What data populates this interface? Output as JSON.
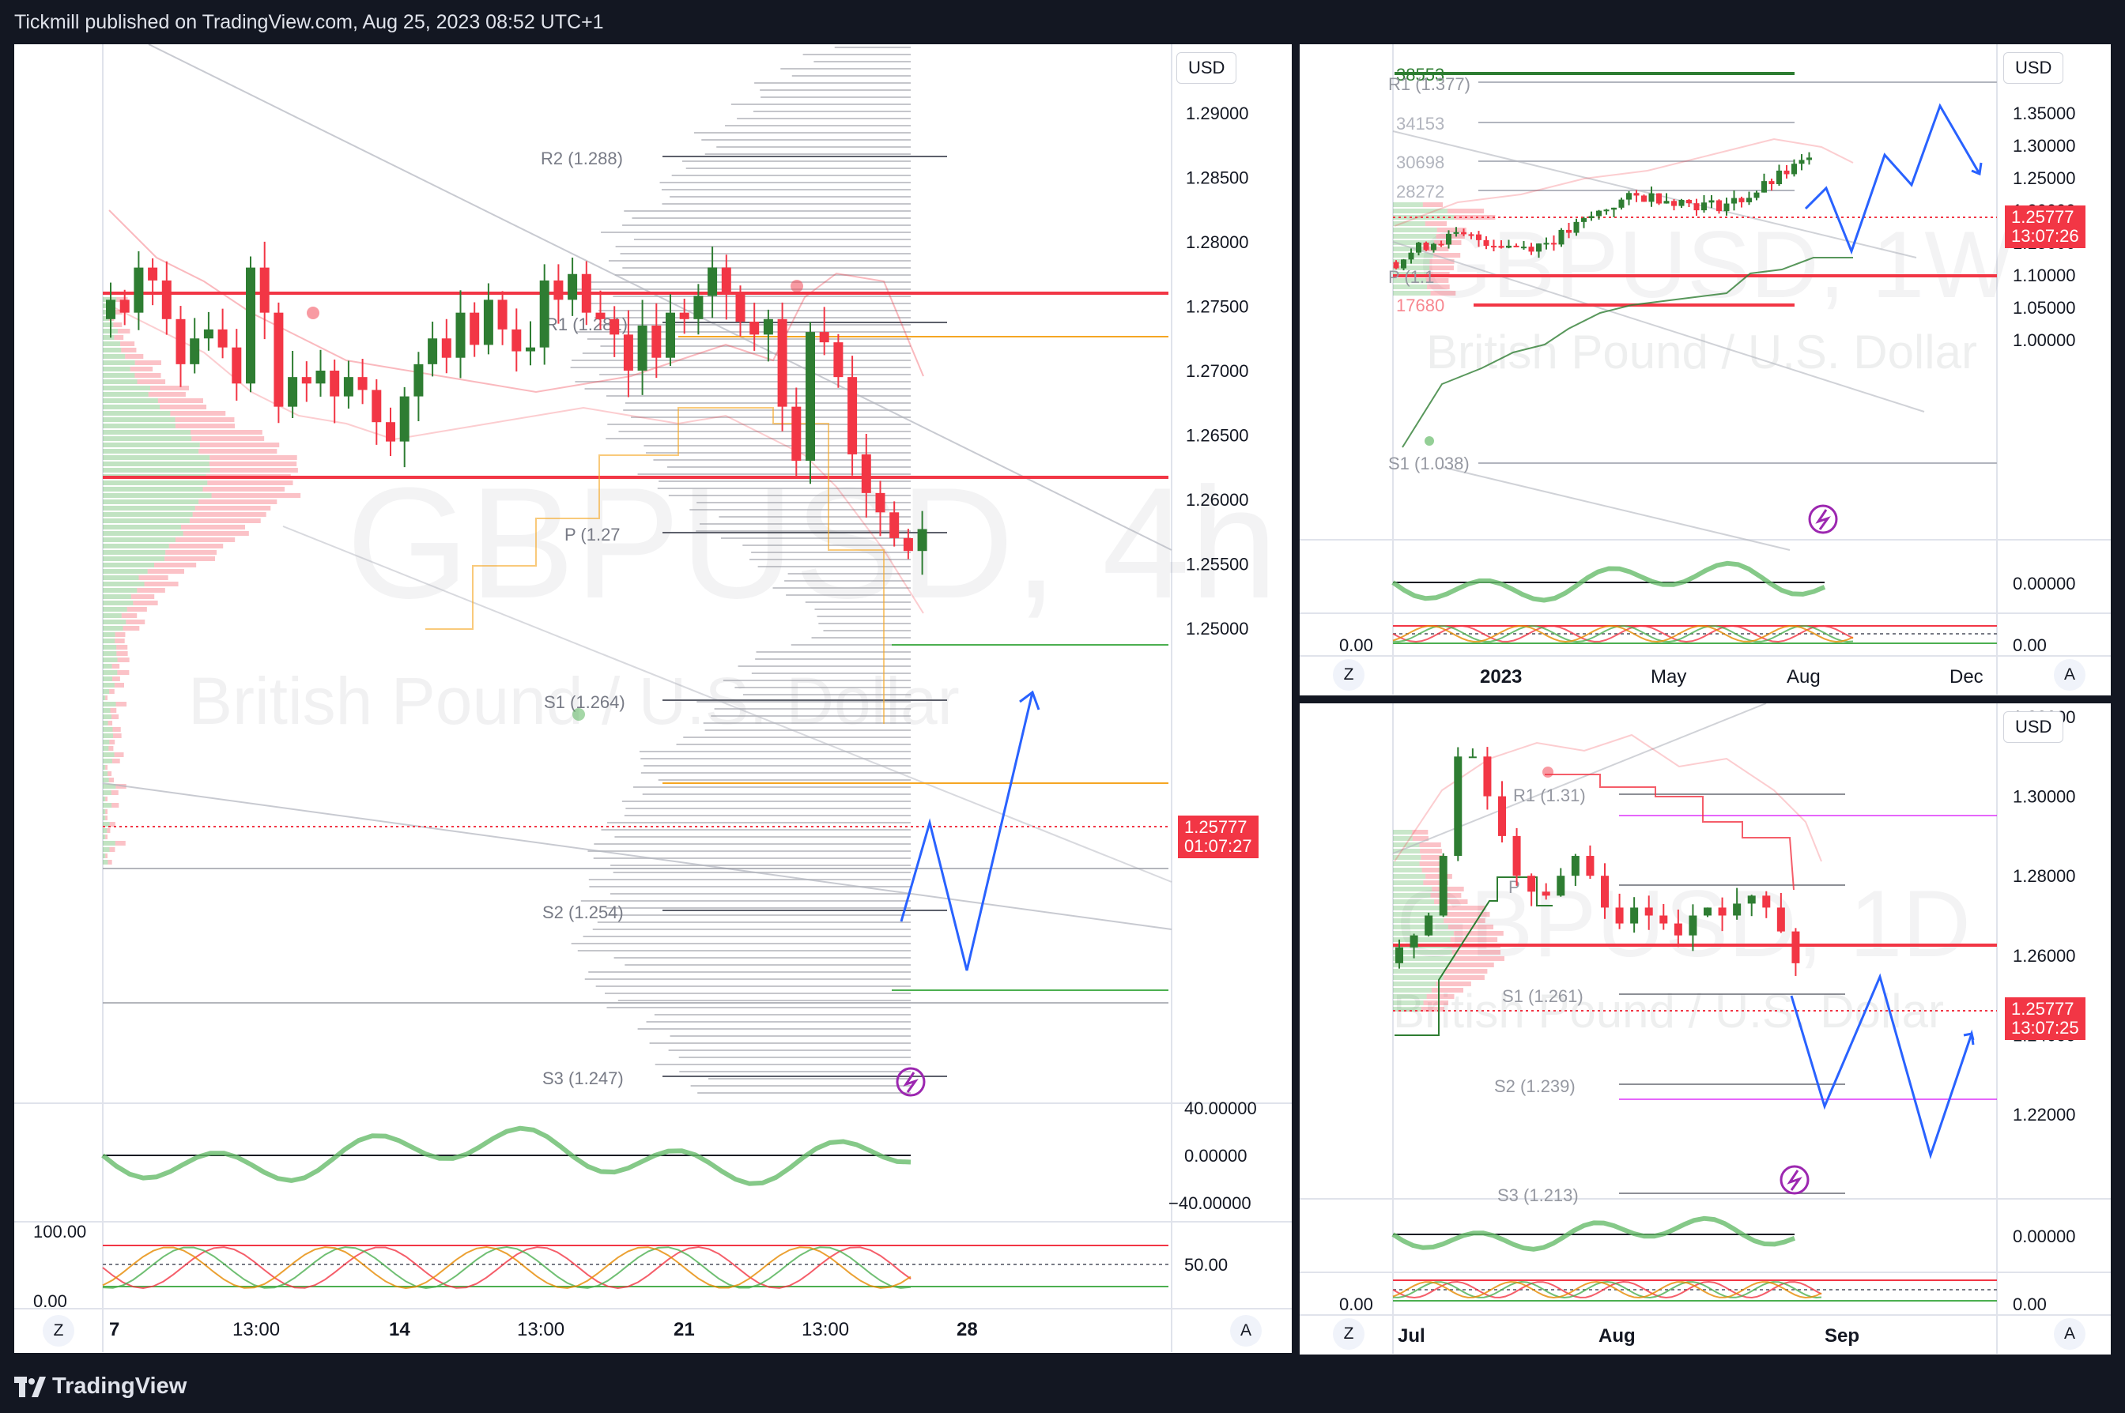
{
  "header": {
    "publisher_line": "Tickmill published on TradingView.com, Aug 25, 2023 08:52 UTC+1"
  },
  "footer": {
    "brand": "TradingView"
  },
  "colors": {
    "bull": "#26a69a",
    "bull_green": "#2e7d32",
    "bear": "#f23645",
    "level_red": "#f23645",
    "orange": "#f5a623",
    "pivot_gray": "#808080",
    "projection_blue": "#2962ff",
    "purple": "#9c27b0"
  },
  "panel_4h": {
    "currency": "USD",
    "watermark_symbol": "GBPUSD, 4h",
    "watermark_name": "British Pound / U.S. Dollar",
    "y_axis": [
      "1.29000",
      "1.28500",
      "1.28000",
      "1.27500",
      "1.27000",
      "1.26500",
      "1.26000",
      "1.25500",
      "1.25000"
    ],
    "price_tag": {
      "price": "1.25777",
      "countdown": "01:07:27"
    },
    "pivots": [
      "R2 (1.288)",
      "R1 (1.281)",
      "P (1.27",
      "S1 (1.264)",
      "S2 (1.254)",
      "S3 (1.247)"
    ],
    "osc_axis": [
      "40.00000",
      "0.00000",
      "−40.00000"
    ],
    "stoch_axis": [
      "100.00",
      "0.00",
      "50.00"
    ],
    "x_axis": [
      "7",
      "13:00",
      "14",
      "13:00",
      "21",
      "13:00",
      "28"
    ],
    "corner_left": "Z",
    "corner_right": "A",
    "closes": [
      1.2755,
      1.2745,
      1.278,
      1.277,
      1.274,
      1.2705,
      1.2725,
      1.2732,
      1.2718,
      1.269,
      1.278,
      1.2745,
      1.2672,
      1.2695,
      1.269,
      1.27,
      1.268,
      1.2695,
      1.2685,
      1.266,
      1.2645,
      1.268,
      1.2705,
      1.2725,
      1.271,
      1.2745,
      1.272,
      1.2755,
      1.2732,
      1.2715,
      1.2718,
      1.277,
      1.2755,
      1.2775,
      1.2745,
      1.274,
      1.2728,
      1.27,
      1.2735,
      1.271,
      1.2745,
      1.274,
      1.2758,
      1.278,
      1.276,
      1.2738,
      1.2728,
      1.274,
      1.2672,
      1.263,
      1.273,
      1.2722,
      1.2695,
      1.2635,
      1.2605,
      1.259,
      1.257,
      1.256,
      1.2577
    ]
  },
  "panel_1w": {
    "currency": "USD",
    "watermark_symbol": "GBPUSD, 1W",
    "watermark_name": "British Pound / U.S. Dollar",
    "y_axis": [
      "1.35000",
      "1.30000",
      "1.25000",
      "1.20000",
      "1.15000",
      "1.10000",
      "1.05000",
      "1.00000"
    ],
    "price_tag": {
      "price": "1.25777",
      "countdown": "13:07:26"
    },
    "levels": [
      "38553",
      "R1 (1.377)",
      "34153",
      "30698",
      "28272",
      "P (1.1",
      "17680",
      "S1 (1.038)"
    ],
    "osc_axis": [
      "0.00000",
      "0.00"
    ],
    "x_axis": [
      "2023",
      "May",
      "Aug",
      "Dec"
    ],
    "corner_left": "Z",
    "corner_right": "A"
  },
  "panel_1d": {
    "currency": "USD",
    "watermark_symbol": "GBPUSD, 1D",
    "watermark_name": "British Pound / U.S. Dollar",
    "y_axis": [
      "1.32000",
      "1.30000",
      "1.28000",
      "1.26000",
      "1.24000",
      "1.22000"
    ],
    "price_tag": {
      "price": "1.25777",
      "countdown": "13:07:25"
    },
    "pivots": [
      "R1 (1.31)",
      "P",
      "S1 (1.261)",
      "S2 (1.239)",
      "S3 (1.213)"
    ],
    "osc_axis": [
      "0.00000",
      "0.00"
    ],
    "x_axis": [
      "Jul",
      "Aug",
      "Sep"
    ],
    "corner_left": "Z",
    "corner_right": "A"
  }
}
